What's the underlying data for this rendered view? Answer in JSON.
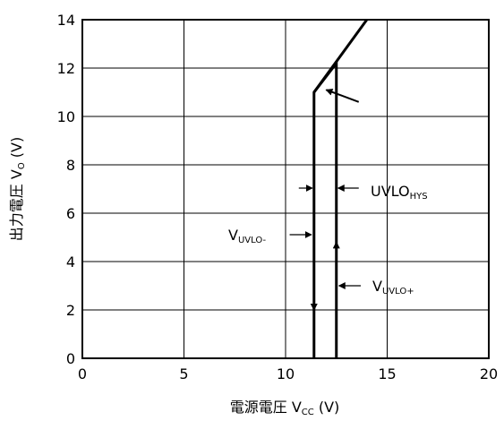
{
  "chart_data": {
    "type": "line",
    "xlabel": {
      "main": "電源電圧 V",
      "sub": "CC",
      "unit": " (V)"
    },
    "ylabel": {
      "main": "出力電圧 V",
      "sub": "O",
      "unit": " (V)"
    },
    "xlim": [
      0,
      20
    ],
    "ylim": [
      0,
      14
    ],
    "x_ticks": [
      "0",
      "5",
      "10",
      "15",
      "20"
    ],
    "y_ticks": [
      "0",
      "2",
      "4",
      "6",
      "8",
      "10",
      "12",
      "14"
    ],
    "grid": true,
    "legend": "none",
    "series": [
      {
        "points": [
          [
            11.4,
            0
          ],
          [
            11.4,
            11.0
          ],
          [
            12.5,
            12.2
          ],
          [
            12.5,
            0
          ]
        ]
      },
      {
        "points": [
          [
            11.4,
            11.0
          ],
          [
            14.0,
            14.0
          ]
        ]
      }
    ],
    "annotations": [
      {
        "main": "UVLO",
        "sub": "HYS"
      },
      {
        "main": "V",
        "sub": "UVLO-"
      },
      {
        "main": "V",
        "sub": "UVLO+"
      }
    ]
  }
}
